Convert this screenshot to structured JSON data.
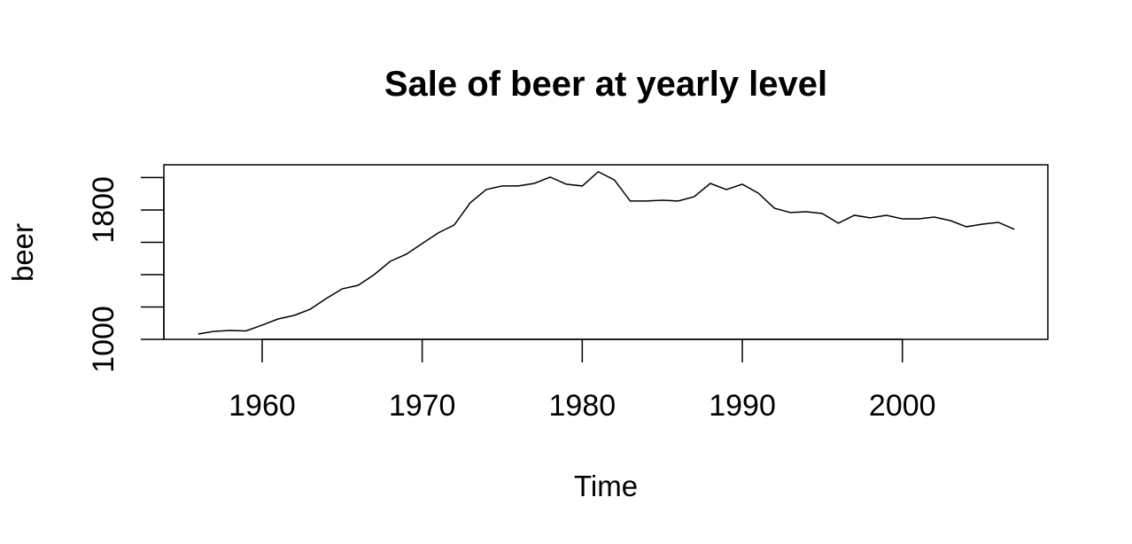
{
  "chart_data": {
    "type": "line",
    "title": "Sale of beer at yearly level",
    "x_label": "Time",
    "y_label": "beer",
    "x": [
      1956,
      1957,
      1958,
      1959,
      1960,
      1961,
      1962,
      1963,
      1964,
      1965,
      1966,
      1967,
      1968,
      1969,
      1970,
      1971,
      1972,
      1973,
      1974,
      1975,
      1976,
      1977,
      1978,
      1979,
      1980,
      1981,
      1982,
      1983,
      1984,
      1985,
      1986,
      1987,
      1988,
      1989,
      1990,
      1991,
      1992,
      1993,
      1994,
      1995,
      1996,
      1997,
      1998,
      1999,
      2000,
      2001,
      2002,
      2003,
      2004,
      2005,
      2006,
      2007
    ],
    "series": [
      {
        "name": "beer",
        "color": "#000000",
        "values": [
          1033,
          1049,
          1055,
          1052,
          1088,
          1126,
          1148,
          1186,
          1252,
          1312,
          1334,
          1400,
          1482,
          1526,
          1592,
          1658,
          1707,
          1844,
          1926,
          1948,
          1948,
          1964,
          2003,
          1959,
          1948,
          2036,
          1986,
          1855,
          1855,
          1860,
          1855,
          1882,
          1964,
          1926,
          1959,
          1904,
          1811,
          1784,
          1789,
          1778,
          1718,
          1767,
          1751,
          1767,
          1745,
          1745,
          1756,
          1734,
          1696,
          1712,
          1723,
          1680
        ]
      }
    ],
    "xlim": [
      1953.86,
      2009.09
    ],
    "xticks": [
      1960,
      1970,
      1980,
      1990,
      2000
    ],
    "ylim": [
      1000,
      2079
    ],
    "yticks": [
      1000,
      1800
    ],
    "yminor_ticks": [
      1200,
      1400,
      1600,
      2000
    ]
  }
}
